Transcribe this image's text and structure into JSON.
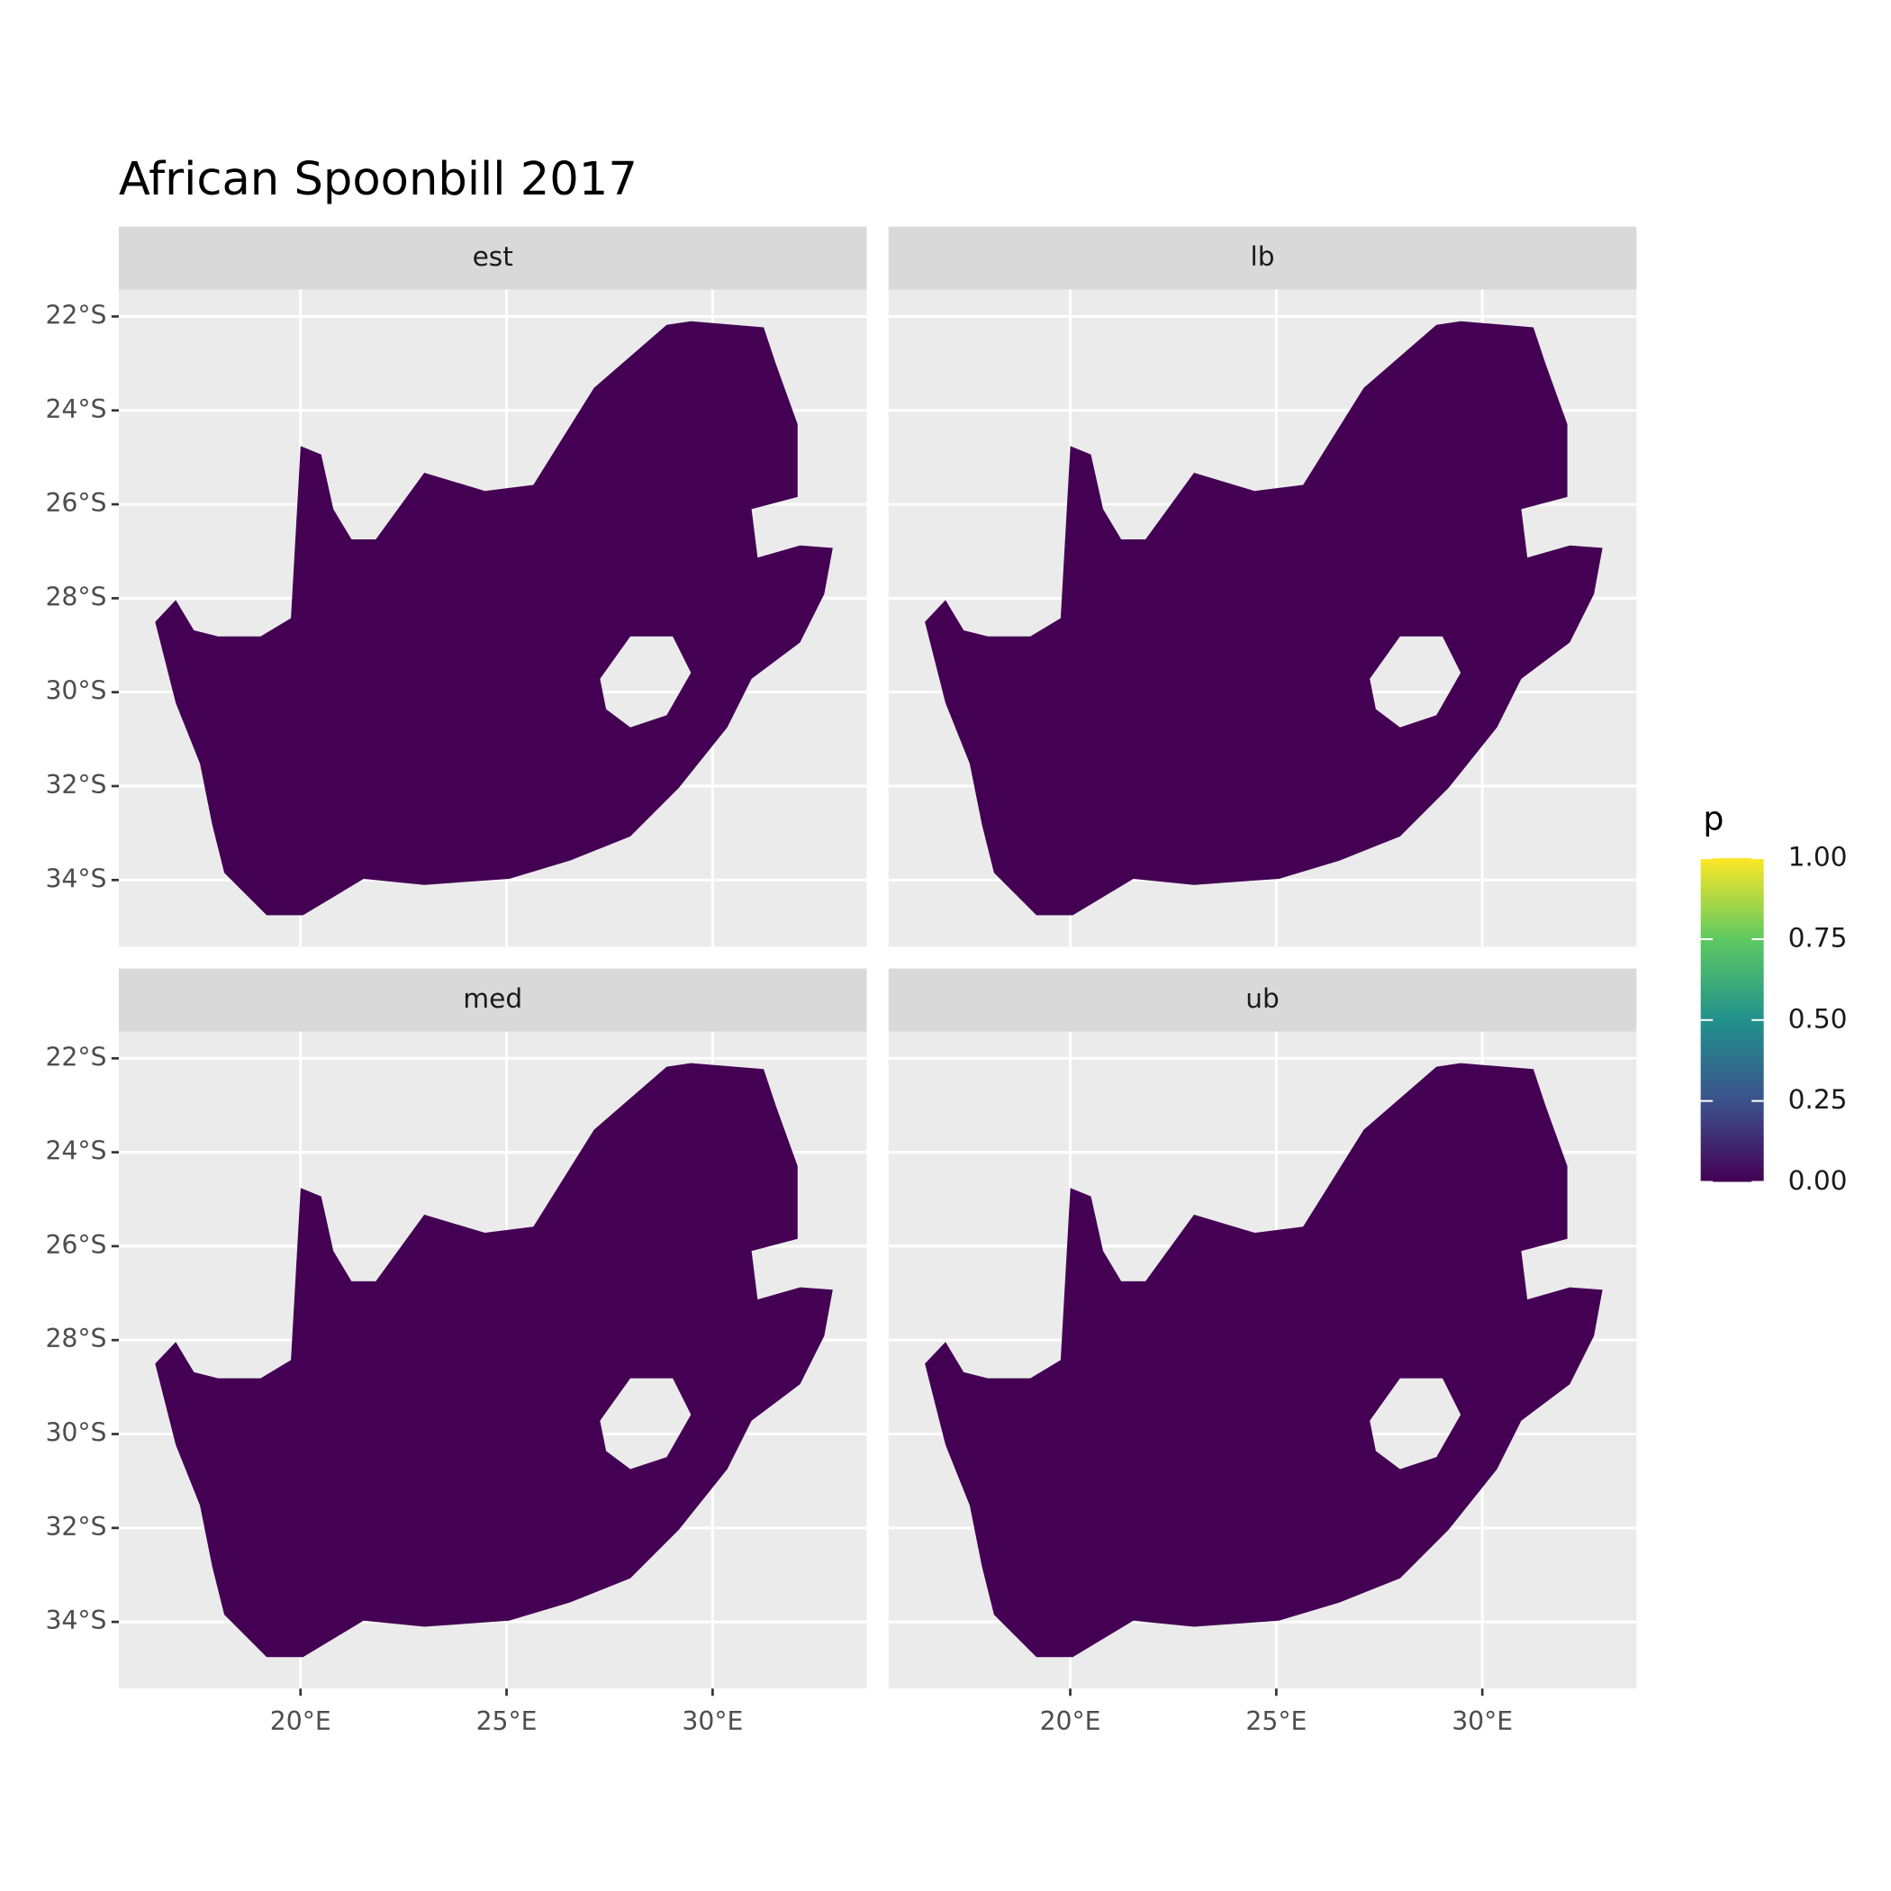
{
  "chart_data": {
    "type": "raster-map",
    "title": "African Spoonbill 2017",
    "facets": [
      "est",
      "lb",
      "med",
      "ub"
    ],
    "xlim": [
      15.59,
      33.74
    ],
    "ylim": [
      -35.42,
      -21.43
    ],
    "xticks": [
      {
        "value": 20,
        "label": "20°E"
      },
      {
        "value": 25,
        "label": "25°E"
      },
      {
        "value": 30,
        "label": "30°E"
      }
    ],
    "yticks": [
      {
        "value": -22,
        "label": "22°S"
      },
      {
        "value": -24,
        "label": "24°S"
      },
      {
        "value": -26,
        "label": "26°S"
      },
      {
        "value": -28,
        "label": "28°S"
      },
      {
        "value": -30,
        "label": "30°S"
      },
      {
        "value": -32,
        "label": "32°S"
      },
      {
        "value": -34,
        "label": "34°S"
      }
    ],
    "legend_title": "p",
    "legend_ticks": [
      {
        "value": 0,
        "label": "0.00"
      },
      {
        "value": 0.25,
        "label": "0.25"
      },
      {
        "value": 0.5,
        "label": "0.50"
      },
      {
        "value": 0.75,
        "label": "0.75"
      },
      {
        "value": 1,
        "label": "1.00"
      }
    ],
    "colors": [
      "#440154",
      "#3b528b",
      "#21918c",
      "#5ec962",
      "#fde725"
    ],
    "grid": true
  }
}
